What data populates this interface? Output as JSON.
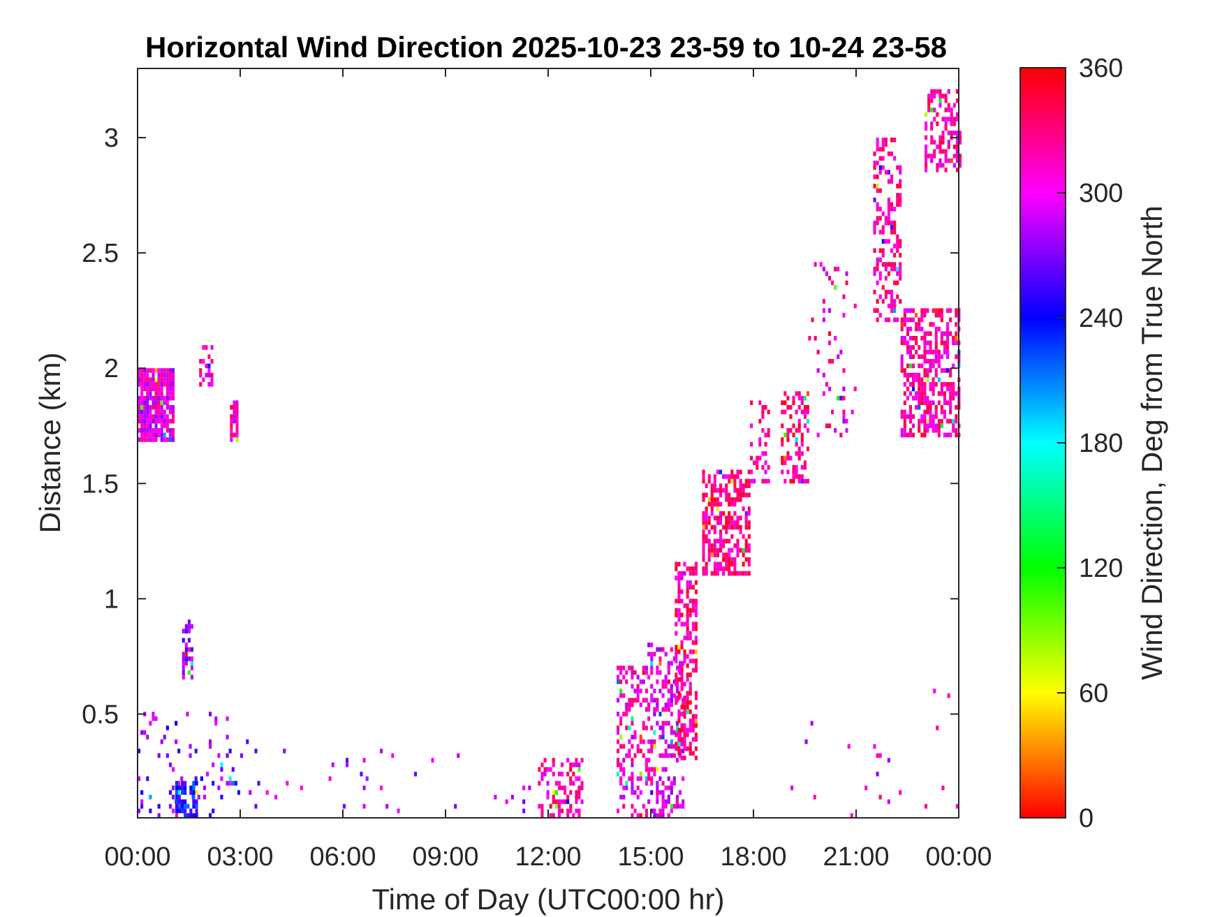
{
  "chart_data": {
    "type": "heatmap",
    "title": "Horizontal Wind Direction 2025-10-23 23-59 to 10-24 23-58",
    "xlabel": "Time of Day (UTC00:00 hr)",
    "ylabel": "Distance (km)",
    "x_tick_labels": [
      "00:00",
      "03:00",
      "06:00",
      "09:00",
      "12:00",
      "15:00",
      "18:00",
      "21:00",
      "00:00"
    ],
    "x_ticks_hours": [
      0,
      3,
      6,
      9,
      12,
      15,
      18,
      21,
      24
    ],
    "xlim_hours": [
      0,
      24
    ],
    "y_ticks": [
      0.5,
      1,
      1.5,
      2,
      2.5,
      3
    ],
    "y_tick_labels": [
      "0.5",
      "1",
      "1.5",
      "2",
      "2.5",
      "3"
    ],
    "ylim": [
      0.05,
      3.3
    ],
    "grid": false,
    "colorbar": {
      "label": "Wind Direction, Deg from True North",
      "ticks": [
        0,
        60,
        120,
        180,
        240,
        300,
        360
      ],
      "tick_labels": [
        "0",
        "60",
        "120",
        "180",
        "240",
        "300",
        "360"
      ],
      "range": [
        0,
        360
      ],
      "colormap": "hsv"
    },
    "clusters": [
      {
        "t0": 0.0,
        "t1": 1.0,
        "z0": 1.68,
        "z1": 2.0,
        "dir": 300,
        "density": 0.85
      },
      {
        "t0": 1.8,
        "t1": 2.2,
        "z0": 1.92,
        "z1": 2.1,
        "dir": 310,
        "density": 0.6
      },
      {
        "t0": 2.7,
        "t1": 2.9,
        "z0": 1.68,
        "z1": 1.85,
        "dir": 315,
        "density": 0.7
      },
      {
        "t0": 1.3,
        "t1": 1.6,
        "z0": 0.65,
        "z1": 0.9,
        "dir": 280,
        "density": 0.45
      },
      {
        "t0": 0.0,
        "t1": 3.0,
        "z0": 0.05,
        "z1": 0.5,
        "dir": 270,
        "density": 0.08
      },
      {
        "t0": 1.1,
        "t1": 1.7,
        "z0": 0.05,
        "z1": 0.2,
        "dir": 240,
        "density": 0.55
      },
      {
        "t0": 3.0,
        "t1": 11.5,
        "z0": 0.05,
        "z1": 0.4,
        "dir": 285,
        "density": 0.02
      },
      {
        "t0": 11.7,
        "t1": 13.0,
        "z0": 0.05,
        "z1": 0.3,
        "dir": 320,
        "density": 0.35
      },
      {
        "t0": 14.0,
        "t1": 14.9,
        "z0": 0.05,
        "z1": 0.7,
        "dir": 310,
        "density": 0.35
      },
      {
        "t0": 14.9,
        "t1": 15.9,
        "z0": 0.05,
        "z1": 0.8,
        "dir": 300,
        "density": 0.35
      },
      {
        "t0": 15.7,
        "t1": 16.3,
        "z0": 0.3,
        "z1": 1.15,
        "dir": 325,
        "density": 0.5
      },
      {
        "t0": 16.5,
        "t1": 17.9,
        "z0": 1.1,
        "z1": 1.55,
        "dir": 330,
        "density": 0.55
      },
      {
        "t0": 17.9,
        "t1": 18.4,
        "z0": 1.5,
        "z1": 1.85,
        "dir": 320,
        "density": 0.3
      },
      {
        "t0": 18.8,
        "t1": 19.6,
        "z0": 1.5,
        "z1": 1.9,
        "dir": 330,
        "density": 0.45
      },
      {
        "t0": 19.6,
        "t1": 21.0,
        "z0": 1.7,
        "z1": 2.45,
        "dir": 310,
        "density": 0.08
      },
      {
        "t0": 21.5,
        "t1": 22.3,
        "z0": 2.2,
        "z1": 3.0,
        "dir": 320,
        "density": 0.35
      },
      {
        "t0": 22.3,
        "t1": 24.0,
        "z0": 1.7,
        "z1": 2.25,
        "dir": 320,
        "density": 0.5
      },
      {
        "t0": 23.0,
        "t1": 24.0,
        "z0": 2.85,
        "z1": 3.2,
        "dir": 315,
        "density": 0.4
      },
      {
        "t0": 18.5,
        "t1": 24.0,
        "z0": 0.05,
        "z1": 0.6,
        "dir": 300,
        "density": 0.01
      }
    ]
  }
}
